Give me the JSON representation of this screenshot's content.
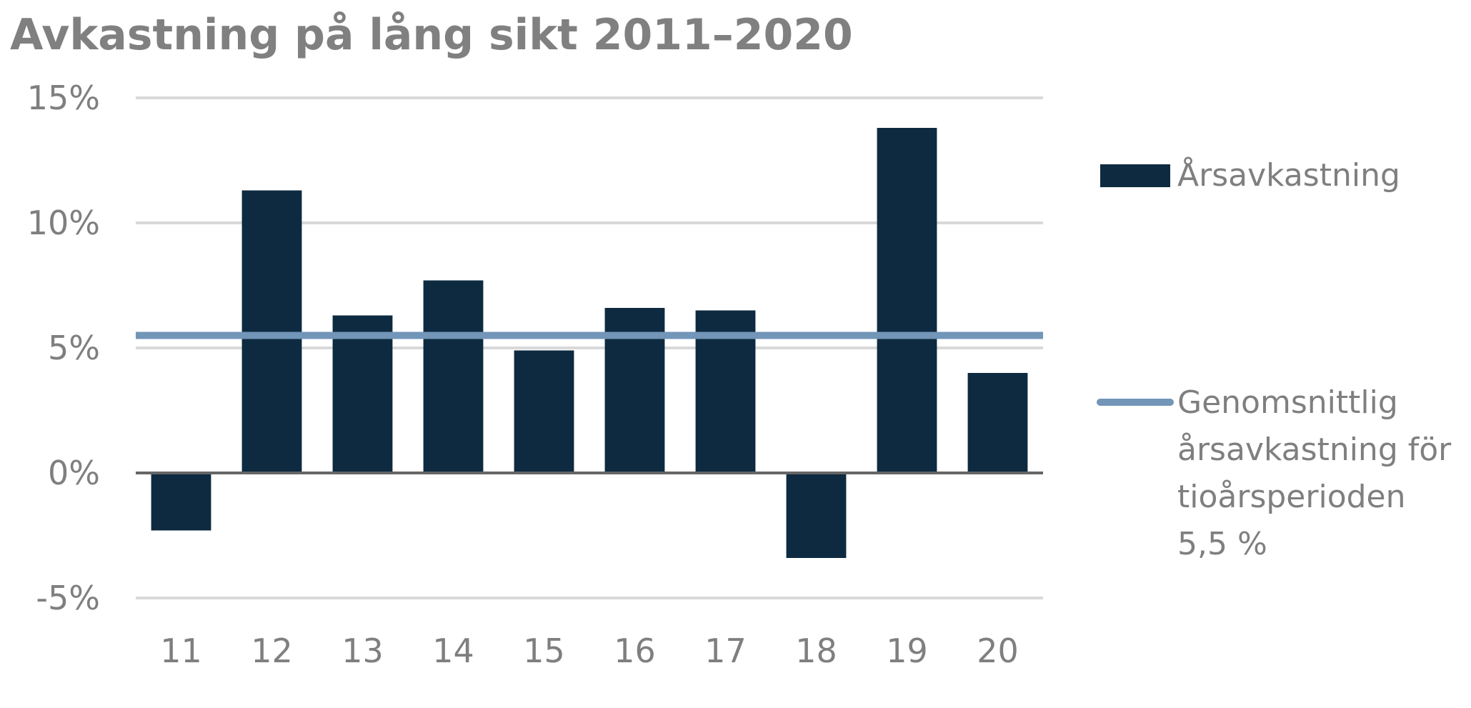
{
  "chart_data": {
    "type": "bar",
    "title": "Avkastning på lång sikt 2011–2020",
    "categories": [
      "11",
      "12",
      "13",
      "14",
      "15",
      "16",
      "17",
      "18",
      "19",
      "20"
    ],
    "series": [
      {
        "name": "Årsavkastning",
        "values": [
          -2.3,
          11.3,
          6.3,
          7.7,
          4.9,
          6.6,
          6.5,
          -3.4,
          13.8,
          4.0
        ],
        "color": "#0d2a40"
      }
    ],
    "reference_line": {
      "name_lines": [
        "Genomsnittlig",
        "årsavkastning för",
        "tioårsperioden",
        "5,5 %"
      ],
      "value": 5.5,
      "color": "#7295b8"
    },
    "y_ticks": [
      {
        "value": 15,
        "label": "15%"
      },
      {
        "value": 10,
        "label": "10%"
      },
      {
        "value": 5,
        "label": "5%"
      },
      {
        "value": 0,
        "label": "0%"
      },
      {
        "value": -5,
        "label": "-5%"
      }
    ],
    "ylim": [
      -5,
      15
    ],
    "grid": true,
    "legend_position": "right"
  }
}
